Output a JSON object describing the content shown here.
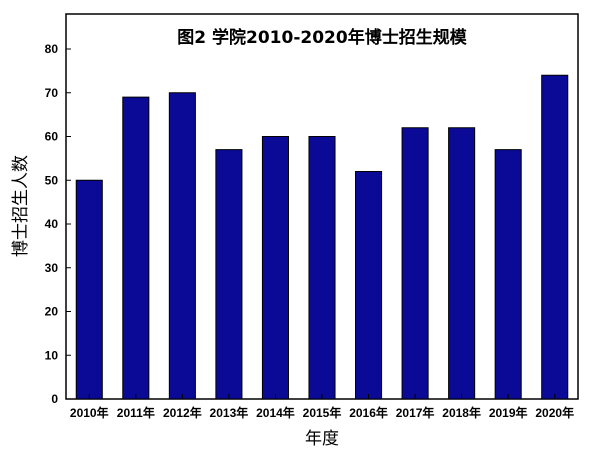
{
  "chart_data": {
    "type": "bar",
    "title": "图2 学院2010-2020年博士招生规模",
    "xlabel": "年度",
    "ylabel": "博士招生人数",
    "categories": [
      "2010年",
      "2011年",
      "2012年",
      "2013年",
      "2014年",
      "2015年",
      "2016年",
      "2017年",
      "2018年",
      "2019年",
      "2020年"
    ],
    "values": [
      50,
      69,
      70,
      57,
      60,
      60,
      52,
      62,
      62,
      57,
      74
    ],
    "ylim": [
      0,
      88
    ],
    "yticks": [
      0,
      10,
      20,
      30,
      40,
      50,
      60,
      70,
      80
    ],
    "grid": false,
    "legend": "none",
    "colors": {
      "bar_fill": "#0a0a96",
      "bar_stroke": "#000000"
    }
  }
}
